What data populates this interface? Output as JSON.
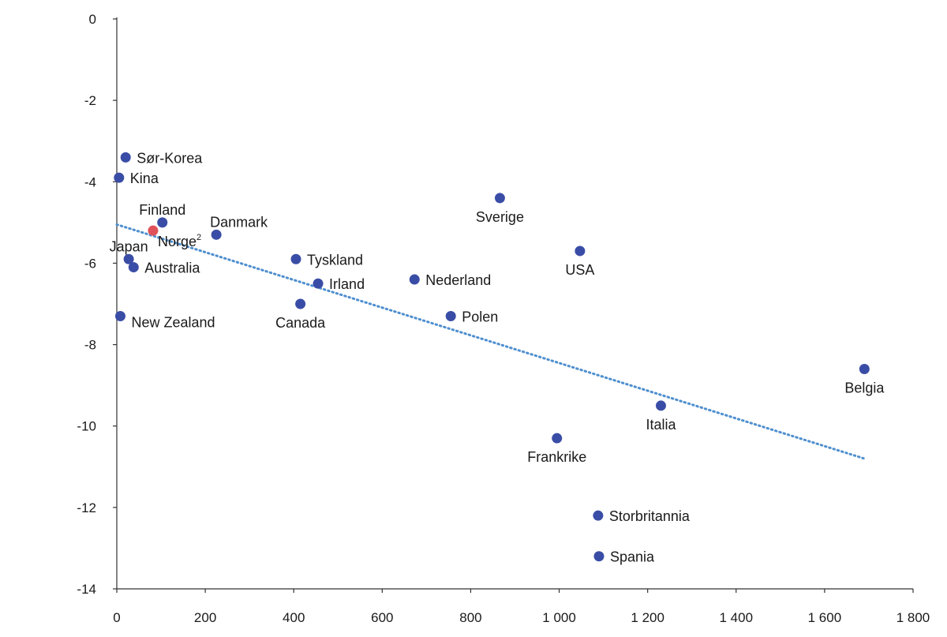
{
  "chart_data": {
    "type": "scatter",
    "title": "",
    "xlabel": "",
    "ylabel": "",
    "xlim": [
      0,
      1800
    ],
    "ylim": [
      -14,
      0
    ],
    "x_ticks": [
      0,
      200,
      400,
      600,
      800,
      1000,
      1200,
      1400,
      1600,
      1800
    ],
    "x_tick_labels": [
      "0",
      "200",
      "400",
      "600",
      "800",
      "1 000",
      "1 200",
      "1 400",
      "1 600",
      "1 800"
    ],
    "y_ticks": [
      0,
      -2,
      -4,
      -6,
      -8,
      -10,
      -12,
      -14
    ],
    "y_tick_labels": [
      "0",
      "-2",
      "-4",
      "-6",
      "-8",
      "-10",
      "-12",
      "-14"
    ],
    "grid": false,
    "point_color": "#3a4da6",
    "highlight_color": "#e0525a",
    "trend_color": "#4f8fcf",
    "points": [
      {
        "label": "Sør-Korea",
        "x": 20,
        "y": -3.4,
        "anchor": "right"
      },
      {
        "label": "Kina",
        "x": 5,
        "y": -3.9,
        "anchor": "right"
      },
      {
        "label": "Finland",
        "x": 103,
        "y": -5.0,
        "anchor": "above"
      },
      {
        "label": "Norge",
        "sup": "2",
        "x": 82,
        "y": -5.2,
        "anchor": "below-right",
        "highlight": true
      },
      {
        "label": "Danmark",
        "x": 225,
        "y": -5.3,
        "anchor": "above-right"
      },
      {
        "label": "Japan",
        "x": 27,
        "y": -5.9,
        "anchor": "above"
      },
      {
        "label": "Australia",
        "x": 38,
        "y": -6.1,
        "anchor": "right"
      },
      {
        "label": "New Zealand",
        "x": 8,
        "y": -7.3,
        "anchor": "right-below"
      },
      {
        "label": "Tyskland",
        "x": 405,
        "y": -5.9,
        "anchor": "right"
      },
      {
        "label": "Irland",
        "x": 455,
        "y": -6.5,
        "anchor": "right"
      },
      {
        "label": "Canada",
        "x": 415,
        "y": -7.0,
        "anchor": "below"
      },
      {
        "label": "Nederland",
        "x": 673,
        "y": -6.4,
        "anchor": "right"
      },
      {
        "label": "Polen",
        "x": 755,
        "y": -7.3,
        "anchor": "right"
      },
      {
        "label": "Sverige",
        "x": 866,
        "y": -4.4,
        "anchor": "below"
      },
      {
        "label": "USA",
        "x": 1047,
        "y": -5.7,
        "anchor": "below"
      },
      {
        "label": "Frankrike",
        "x": 995,
        "y": -10.3,
        "anchor": "below"
      },
      {
        "label": "Italia",
        "x": 1230,
        "y": -9.5,
        "anchor": "below"
      },
      {
        "label": "Storbritannia",
        "x": 1088,
        "y": -12.2,
        "anchor": "right"
      },
      {
        "label": "Spania",
        "x": 1090,
        "y": -13.2,
        "anchor": "right"
      },
      {
        "label": "Belgia",
        "x": 1690,
        "y": -8.6,
        "anchor": "below"
      }
    ],
    "trendline": {
      "x": [
        0,
        1690
      ],
      "y": [
        -5.05,
        -10.8
      ]
    }
  }
}
